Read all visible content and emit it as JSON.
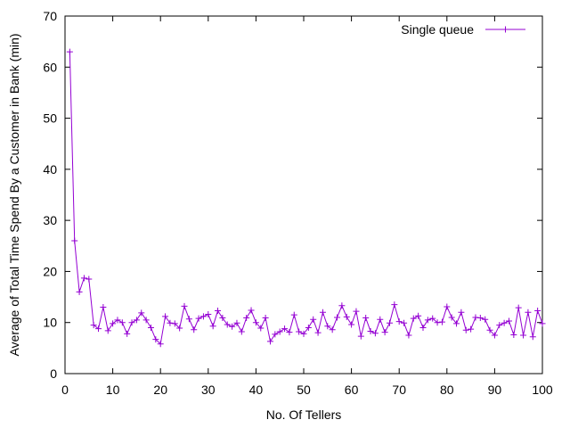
{
  "chart_data": {
    "type": "line",
    "xlabel": "No. Of Tellers",
    "ylabel": "Average of Total Time Spend By a Customer in Bank (min)",
    "xlim": [
      0,
      100
    ],
    "ylim": [
      0,
      70
    ],
    "xticks": [
      0,
      10,
      20,
      30,
      40,
      50,
      60,
      70,
      80,
      90,
      100
    ],
    "yticks": [
      0,
      10,
      20,
      30,
      40,
      50,
      60,
      70
    ],
    "grid": false,
    "legend_position": "top-right",
    "series": [
      {
        "name": "Single queue",
        "color": "#9400d3",
        "marker": "plus",
        "x": [
          1,
          2,
          3,
          4,
          5,
          6,
          7,
          8,
          9,
          10,
          11,
          12,
          13,
          14,
          15,
          16,
          17,
          18,
          19,
          20,
          21,
          22,
          23,
          24,
          25,
          26,
          27,
          28,
          29,
          30,
          31,
          32,
          33,
          34,
          35,
          36,
          37,
          38,
          39,
          40,
          41,
          42,
          43,
          44,
          45,
          46,
          47,
          48,
          49,
          50,
          51,
          52,
          53,
          54,
          55,
          56,
          57,
          58,
          59,
          60,
          61,
          62,
          63,
          64,
          65,
          66,
          67,
          68,
          69,
          70,
          71,
          72,
          73,
          74,
          75,
          76,
          77,
          78,
          79,
          80,
          81,
          82,
          83,
          84,
          85,
          86,
          87,
          88,
          89,
          90,
          91,
          92,
          93,
          94,
          95,
          96,
          97,
          98,
          99,
          100
        ],
        "y": [
          63.0,
          26.0,
          16.0,
          18.7,
          18.5,
          9.5,
          8.8,
          13.0,
          8.4,
          9.8,
          10.5,
          10.0,
          7.8,
          10.0,
          10.5,
          11.9,
          10.5,
          9.0,
          6.7,
          5.8,
          11.2,
          9.9,
          9.8,
          8.9,
          13.2,
          10.7,
          8.6,
          10.8,
          11.2,
          11.6,
          9.3,
          12.3,
          10.9,
          9.6,
          9.2,
          9.9,
          8.2,
          10.9,
          12.4,
          10.0,
          8.9,
          10.9,
          6.3,
          7.7,
          8.2,
          8.8,
          8.1,
          11.5,
          8.2,
          7.8,
          9.0,
          10.6,
          8.0,
          12.0,
          9.3,
          8.6,
          11.0,
          13.3,
          11.1,
          9.6,
          12.2,
          7.3,
          10.9,
          8.3,
          7.9,
          10.6,
          8.1,
          9.9,
          13.5,
          10.2,
          9.9,
          7.5,
          10.8,
          11.3,
          9.0,
          10.5,
          10.8,
          10.0,
          10.1,
          13.1,
          11.0,
          9.8,
          12.0,
          8.5,
          8.7,
          11.0,
          10.9,
          10.6,
          8.5,
          7.5,
          9.5,
          9.9,
          10.3,
          7.6,
          12.9,
          7.5,
          12.0,
          7.2,
          12.3,
          9.8
        ]
      }
    ]
  }
}
